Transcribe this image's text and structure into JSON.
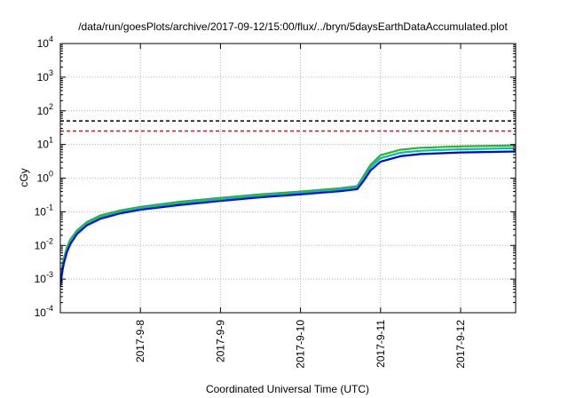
{
  "chart_data": {
    "type": "line",
    "title": "/data/run/goesPlots/archive/2017-09-12/15:00/flux/../bryn/5daysEarthDataAccumulated.plot",
    "xlabel": "Coordinated Universal Time (UTC)",
    "ylabel": "cGy",
    "y_scale": "log",
    "ylim_exponents": [
      -4,
      4
    ],
    "y_tick_base": "10",
    "y_tick_exponents": [
      "-4",
      "-3",
      "-2",
      "-1",
      "0",
      "1",
      "2",
      "3",
      "4"
    ],
    "xlim": [
      "2017-09-07 00:00",
      "2017-09-12 16:30"
    ],
    "x_ticks": [
      {
        "date": "2017-09-08",
        "label": "2017-9-8"
      },
      {
        "date": "2017-09-09",
        "label": "2017-9-9"
      },
      {
        "date": "2017-09-10",
        "label": "2017-9-10"
      },
      {
        "date": "2017-09-11",
        "label": "2017-9-11"
      },
      {
        "date": "2017-09-12",
        "label": "2017-9-12"
      }
    ],
    "grid": true,
    "reference_lines": [
      {
        "y": 50,
        "color": "#000000",
        "style": "dashed"
      },
      {
        "y": 25,
        "color": "#ff0000",
        "style": "dashed"
      }
    ],
    "series": [
      {
        "color": "#22bb22",
        "points": [
          [
            "2017-09-07 00:00",
            0.0012
          ],
          [
            "2017-09-07 01:00",
            0.004
          ],
          [
            "2017-09-07 02:00",
            0.009
          ],
          [
            "2017-09-07 03:00",
            0.015
          ],
          [
            "2017-09-07 05:00",
            0.028
          ],
          [
            "2017-09-07 08:00",
            0.05
          ],
          [
            "2017-09-07 12:00",
            0.078
          ],
          [
            "2017-09-07 18:00",
            0.11
          ],
          [
            "2017-09-08 00:00",
            0.14
          ],
          [
            "2017-09-08 12:00",
            0.2
          ],
          [
            "2017-09-09 00:00",
            0.26
          ],
          [
            "2017-09-09 12:00",
            0.33
          ],
          [
            "2017-09-10 00:00",
            0.4
          ],
          [
            "2017-09-10 12:00",
            0.5
          ],
          [
            "2017-09-10 17:00",
            0.58
          ],
          [
            "2017-09-10 19:00",
            1.2
          ],
          [
            "2017-09-10 21:00",
            2.5
          ],
          [
            "2017-09-11 00:00",
            4.8
          ],
          [
            "2017-09-11 06:00",
            7.0
          ],
          [
            "2017-09-11 12:00",
            8.0
          ],
          [
            "2017-09-12 00:00",
            8.8
          ],
          [
            "2017-09-12 16:30",
            9.4
          ]
        ]
      },
      {
        "color": "#00bbbb",
        "points": [
          [
            "2017-09-07 00:00",
            0.001
          ],
          [
            "2017-09-07 01:00",
            0.0035
          ],
          [
            "2017-09-07 02:00",
            0.008
          ],
          [
            "2017-09-07 03:00",
            0.013
          ],
          [
            "2017-09-07 05:00",
            0.025
          ],
          [
            "2017-09-07 08:00",
            0.045
          ],
          [
            "2017-09-07 12:00",
            0.07
          ],
          [
            "2017-09-07 18:00",
            0.1
          ],
          [
            "2017-09-08 00:00",
            0.13
          ],
          [
            "2017-09-08 12:00",
            0.18
          ],
          [
            "2017-09-09 00:00",
            0.24
          ],
          [
            "2017-09-09 12:00",
            0.3
          ],
          [
            "2017-09-10 00:00",
            0.37
          ],
          [
            "2017-09-10 12:00",
            0.46
          ],
          [
            "2017-09-10 17:00",
            0.53
          ],
          [
            "2017-09-10 19:00",
            1.05
          ],
          [
            "2017-09-10 21:00",
            2.1
          ],
          [
            "2017-09-11 00:00",
            3.9
          ],
          [
            "2017-09-11 06:00",
            5.7
          ],
          [
            "2017-09-11 12:00",
            6.5
          ],
          [
            "2017-09-12 00:00",
            7.2
          ],
          [
            "2017-09-12 16:30",
            7.7
          ]
        ]
      },
      {
        "color": "#0000ee",
        "points": [
          [
            "2017-09-07 00:00",
            0.0006
          ],
          [
            "2017-09-07 00:30",
            0.0015
          ],
          [
            "2017-09-07 01:00",
            0.0028
          ],
          [
            "2017-09-07 02:00",
            0.0065
          ],
          [
            "2017-09-07 03:00",
            0.011
          ],
          [
            "2017-09-07 05:00",
            0.022
          ],
          [
            "2017-09-07 08:00",
            0.04
          ],
          [
            "2017-09-07 12:00",
            0.062
          ],
          [
            "2017-09-07 18:00",
            0.09
          ],
          [
            "2017-09-08 00:00",
            0.115
          ],
          [
            "2017-09-08 12:00",
            0.16
          ],
          [
            "2017-09-09 00:00",
            0.21
          ],
          [
            "2017-09-09 12:00",
            0.27
          ],
          [
            "2017-09-10 00:00",
            0.33
          ],
          [
            "2017-09-10 12:00",
            0.41
          ],
          [
            "2017-09-10 17:00",
            0.47
          ],
          [
            "2017-09-10 19:00",
            0.85
          ],
          [
            "2017-09-10 21:00",
            1.7
          ],
          [
            "2017-09-11 00:00",
            3.1
          ],
          [
            "2017-09-11 06:00",
            4.5
          ],
          [
            "2017-09-11 12:00",
            5.2
          ],
          [
            "2017-09-12 00:00",
            5.8
          ],
          [
            "2017-09-12 16:30",
            6.2
          ]
        ]
      }
    ]
  }
}
